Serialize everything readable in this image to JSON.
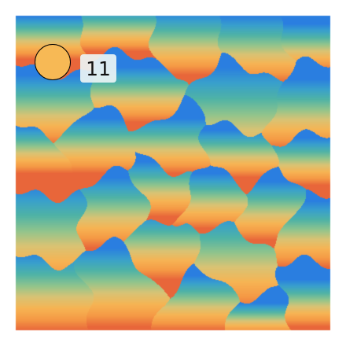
{
  "colors": {
    "page_background": "#ffffff",
    "token_fill": "#f7b955",
    "token_outline": "#000000",
    "badge_background": "#ecf4f4",
    "badge_text": "#111111",
    "palette_stops": [
      "#2a7ee0",
      "#39a0cc",
      "#4fb3a6",
      "#8fc48d",
      "#d9c374",
      "#f6b454",
      "#f59a45",
      "#e8663a"
    ]
  },
  "player": {
    "icon": "player-token-icon",
    "shape": "circle"
  },
  "hud": {
    "score": "11"
  }
}
